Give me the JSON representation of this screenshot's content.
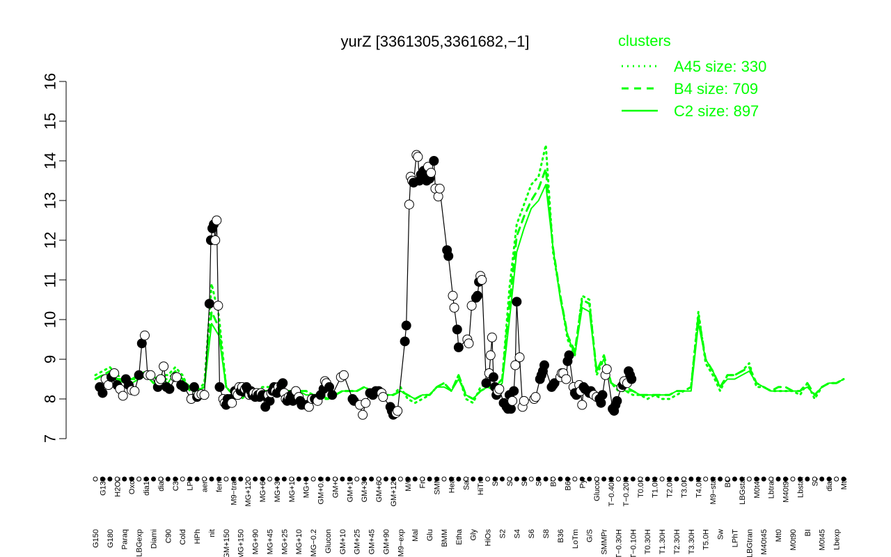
{
  "chart_data": {
    "type": "line",
    "title": "yurZ [3361305,3361682,−1]",
    "xlabel": "",
    "ylabel": "",
    "ylim": [
      7,
      16
    ],
    "yticks": [
      7,
      8,
      9,
      10,
      11,
      12,
      13,
      14,
      15,
      16
    ],
    "x": [
      "G150",
      "G135",
      "G180",
      "H2O2",
      "Paraq",
      "Oxctl",
      "LBGexp",
      "dia15",
      "Diami",
      "dia5",
      "C90",
      "C30",
      "Cold",
      "LPh",
      "HPh",
      "aero",
      "nit",
      "ferm",
      "GM+150",
      "M9−tran",
      "MG+150",
      "MG+120",
      "MG+90",
      "MG+60",
      "MG+45",
      "MG+30",
      "MG+25",
      "MG+15",
      "MG+10",
      "MG+5",
      "MG−0.2",
      "GM+0.2",
      "Glucon",
      "GM+5",
      "GM+10",
      "GM+15",
      "GM+25",
      "GM+30",
      "GM+45",
      "GM+60",
      "GM+90",
      "GM+120",
      "M9−exp",
      "M/G",
      "Mal",
      "Fru",
      "Glu",
      "SMM",
      "BMM",
      "Heat",
      "Etha",
      "Salt",
      "Gly",
      "HiTm",
      "HiOs",
      "S1",
      "S2",
      "S3",
      "S4",
      "S5",
      "S6",
      "S7",
      "S8",
      "BT",
      "B36",
      "B60",
      "LoTm",
      "Pyr",
      "G/S",
      "Glucon",
      "SMMPr",
      "T−0.40H",
      "T−0.30H",
      "T−0.20H",
      "T−0.10H",
      "T0.0H",
      "T0.30H",
      "T1.0H",
      "T1.30H",
      "T2.0H",
      "T2.30H",
      "T3.0H",
      "T3.30H",
      "T4.0H",
      "T5.0H",
      "M9−stat",
      "Sw",
      "BC",
      "LPhT",
      "LBGstat",
      "LBGtran",
      "M0t45",
      "M40t45",
      "Lbtran",
      "Mt0",
      "M40t90",
      "M0t90",
      "Lbstat",
      "BI",
      "S0",
      "M0t45",
      "dia0",
      "Lbexp",
      "Mt0"
    ],
    "series": [
      {
        "name": "A45 size: 330",
        "style": "dotted",
        "values": [
          8.6,
          8.7,
          8.8,
          8.6,
          8.5,
          8.5,
          8.6,
          8.7,
          8.5,
          8.6,
          8.6,
          8.8,
          8.6,
          8.2,
          8.2,
          8.4,
          10.9,
          10.1,
          8.3,
          8.1,
          8.0,
          8.1,
          8.2,
          8.3,
          8.3,
          8.2,
          8.2,
          8.2,
          8.2,
          8.2,
          8.1,
          8.0,
          8.0,
          8.1,
          8.2,
          8.2,
          8.2,
          8.3,
          8.2,
          8.1,
          8.1,
          8.1,
          8.3,
          8.0,
          7.9,
          8.0,
          8.1,
          8.3,
          8.4,
          8.2,
          8.6,
          8.0,
          7.9,
          8.3,
          8.4,
          8.3,
          8.5,
          10.8,
          12.4,
          12.9,
          13.4,
          13.6,
          14.4,
          11.7,
          10.6,
          9.5,
          9.1,
          10.6,
          10.5,
          8.6,
          9.0,
          8.4,
          8.2,
          8.2,
          8.1,
          8.1,
          8.0,
          8.1,
          8.0,
          8.0,
          8.1,
          8.2,
          8.3,
          10.2,
          8.9,
          8.6,
          8.2,
          8.6,
          8.6,
          8.7,
          8.9,
          8.3,
          8.3,
          8.2,
          8.2,
          8.2,
          8.2,
          8.1,
          8.4,
          8.0,
          8.3,
          8.4,
          8.4,
          8.5
        ]
      },
      {
        "name": "B4 size: 709",
        "style": "dashed",
        "values": [
          8.5,
          8.6,
          8.7,
          8.5,
          8.5,
          8.5,
          8.5,
          8.6,
          8.4,
          8.5,
          8.5,
          8.7,
          8.5,
          8.3,
          8.2,
          8.3,
          10.2,
          9.8,
          8.3,
          8.1,
          8.1,
          8.1,
          8.2,
          8.2,
          8.2,
          8.2,
          8.2,
          8.2,
          8.2,
          8.2,
          8.1,
          8.1,
          8.0,
          8.1,
          8.2,
          8.2,
          8.2,
          8.3,
          8.2,
          8.2,
          8.1,
          8.1,
          8.2,
          8.1,
          8.0,
          8.1,
          8.1,
          8.3,
          8.4,
          8.2,
          8.6,
          8.1,
          8.0,
          8.2,
          8.3,
          8.3,
          8.5,
          10.4,
          12.1,
          12.6,
          13.0,
          13.3,
          13.8,
          11.8,
          10.6,
          9.6,
          9.2,
          10.5,
          10.4,
          8.7,
          9.1,
          8.4,
          8.3,
          8.3,
          8.2,
          8.1,
          8.1,
          8.1,
          8.1,
          8.1,
          8.2,
          8.2,
          8.3,
          10.1,
          9.0,
          8.7,
          8.3,
          8.6,
          8.6,
          8.7,
          8.8,
          8.4,
          8.3,
          8.2,
          8.3,
          8.3,
          8.2,
          8.2,
          8.4,
          8.1,
          8.3,
          8.4,
          8.4,
          8.5
        ]
      },
      {
        "name": "C2 size: 897",
        "style": "solid",
        "values": [
          8.5,
          8.6,
          8.6,
          8.5,
          8.4,
          8.4,
          8.5,
          8.6,
          8.4,
          8.5,
          8.4,
          8.7,
          8.5,
          8.3,
          8.2,
          8.3,
          9.9,
          9.6,
          8.3,
          8.1,
          8.1,
          8.1,
          8.2,
          8.2,
          8.2,
          8.2,
          8.2,
          8.2,
          8.2,
          8.1,
          8.1,
          8.1,
          8.0,
          8.1,
          8.2,
          8.2,
          8.2,
          8.3,
          8.2,
          8.1,
          8.1,
          8.1,
          8.2,
          8.1,
          8.0,
          8.1,
          8.1,
          8.3,
          8.3,
          8.2,
          8.5,
          8.1,
          8.0,
          8.2,
          8.3,
          8.2,
          8.4,
          10.0,
          11.7,
          12.3,
          12.8,
          13.0,
          13.4,
          11.8,
          10.5,
          9.6,
          9.1,
          10.3,
          10.2,
          8.7,
          9.0,
          8.4,
          8.3,
          8.2,
          8.2,
          8.1,
          8.1,
          8.1,
          8.1,
          8.1,
          8.2,
          8.2,
          8.2,
          9.9,
          9.0,
          8.7,
          8.3,
          8.5,
          8.5,
          8.6,
          8.7,
          8.4,
          8.3,
          8.2,
          8.2,
          8.2,
          8.2,
          8.2,
          8.3,
          8.1,
          8.3,
          8.4,
          8.4,
          8.5
        ]
      }
    ],
    "points": [
      [
        0.6,
        8.3,
        1
      ],
      [
        1.0,
        8.15,
        1
      ],
      [
        1.4,
        8.5,
        0
      ],
      [
        1.8,
        8.35,
        0
      ],
      [
        2.2,
        8.55,
        1
      ],
      [
        2.6,
        8.65,
        0
      ],
      [
        3.0,
        8.35,
        1
      ],
      [
        3.4,
        8.25,
        0
      ],
      [
        3.8,
        8.08,
        0
      ],
      [
        4.2,
        8.5,
        1
      ],
      [
        4.6,
        8.35,
        1
      ],
      [
        5.0,
        8.22,
        0
      ],
      [
        5.4,
        8.2,
        0
      ],
      [
        6.0,
        8.6,
        1
      ],
      [
        6.4,
        9.4,
        1
      ],
      [
        6.8,
        9.6,
        0
      ],
      [
        7.2,
        8.6,
        0
      ],
      [
        7.6,
        8.6,
        0
      ],
      [
        8.6,
        8.3,
        1
      ],
      [
        8.8,
        8.45,
        0
      ],
      [
        9.0,
        8.5,
        0
      ],
      [
        9.4,
        8.82,
        0
      ],
      [
        9.8,
        8.3,
        1
      ],
      [
        10.2,
        8.25,
        1
      ],
      [
        11.0,
        8.55,
        0
      ],
      [
        11.2,
        8.55,
        0
      ],
      [
        11.8,
        8.35,
        1
      ],
      [
        12.2,
        8.3,
        1
      ],
      [
        13.2,
        8.0,
        0
      ],
      [
        13.6,
        8.3,
        1
      ],
      [
        14.0,
        8.05,
        1
      ],
      [
        14.2,
        8.1,
        0
      ],
      [
        14.6,
        8.12,
        0
      ],
      [
        15.0,
        8.1,
        0
      ],
      [
        15.7,
        10.4,
        1
      ],
      [
        15.9,
        12.0,
        1
      ],
      [
        16.1,
        12.3,
        1
      ],
      [
        16.3,
        12.4,
        1
      ],
      [
        16.5,
        12.0,
        0
      ],
      [
        16.7,
        12.5,
        0
      ],
      [
        16.9,
        10.35,
        0
      ],
      [
        17.1,
        8.3,
        1
      ],
      [
        17.6,
        8.0,
        0
      ],
      [
        17.8,
        7.9,
        0
      ],
      [
        18.0,
        7.85,
        1
      ],
      [
        18.2,
        8.0,
        1
      ],
      [
        18.6,
        8.0,
        1
      ],
      [
        18.8,
        7.9,
        0
      ],
      [
        19.2,
        8.2,
        1
      ],
      [
        19.4,
        8.15,
        0
      ],
      [
        19.6,
        8.1,
        0
      ],
      [
        19.8,
        8.3,
        0
      ],
      [
        20.0,
        8.2,
        1
      ],
      [
        20.2,
        8.3,
        0
      ],
      [
        20.4,
        8.18,
        1
      ],
      [
        20.6,
        8.25,
        0
      ],
      [
        20.8,
        8.3,
        1
      ],
      [
        21.0,
        8.2,
        1
      ],
      [
        21.2,
        8.1,
        0
      ],
      [
        21.4,
        8.2,
        1
      ],
      [
        21.6,
        8.1,
        1
      ],
      [
        21.8,
        8.15,
        0
      ],
      [
        22.0,
        8.05,
        1
      ],
      [
        22.2,
        8.15,
        0
      ],
      [
        22.4,
        8.1,
        1
      ],
      [
        22.6,
        8.05,
        1
      ],
      [
        22.8,
        8.15,
        0
      ],
      [
        23.0,
        8.1,
        1
      ],
      [
        23.4,
        7.8,
        1
      ],
      [
        23.6,
        8.05,
        1
      ],
      [
        23.8,
        8.1,
        0
      ],
      [
        24.0,
        7.95,
        1
      ],
      [
        24.2,
        8.15,
        0
      ],
      [
        24.4,
        8.2,
        1
      ],
      [
        24.6,
        8.3,
        1
      ],
      [
        24.8,
        8.2,
        0
      ],
      [
        25.0,
        8.15,
        1
      ],
      [
        25.2,
        8.3,
        0
      ],
      [
        25.4,
        8.2,
        1
      ],
      [
        25.6,
        8.35,
        1
      ],
      [
        25.8,
        8.4,
        1
      ],
      [
        26.0,
        8.15,
        0
      ],
      [
        26.2,
        8.0,
        0
      ],
      [
        26.4,
        7.95,
        1
      ],
      [
        26.6,
        8.05,
        0
      ],
      [
        26.8,
        8.0,
        1
      ],
      [
        27.0,
        8.1,
        1
      ],
      [
        27.2,
        7.95,
        1
      ],
      [
        27.4,
        8.0,
        1
      ],
      [
        27.6,
        8.2,
        0
      ],
      [
        28.0,
        8.05,
        0
      ],
      [
        28.2,
        7.95,
        1
      ],
      [
        28.4,
        7.85,
        1
      ],
      [
        29.0,
        7.85,
        1
      ],
      [
        29.4,
        7.8,
        0
      ],
      [
        29.8,
        8.0,
        0
      ],
      [
        30.2,
        8.0,
        1
      ],
      [
        30.6,
        7.95,
        0
      ],
      [
        31.0,
        8.1,
        1
      ],
      [
        31.4,
        8.25,
        1
      ],
      [
        31.6,
        8.45,
        0
      ],
      [
        31.8,
        8.4,
        0
      ],
      [
        32.2,
        8.3,
        1
      ],
      [
        32.6,
        8.1,
        1
      ],
      [
        33.8,
        8.55,
        0
      ],
      [
        34.2,
        8.6,
        0
      ],
      [
        35.4,
        8.0,
        1
      ],
      [
        35.6,
        7.95,
        1
      ],
      [
        36.4,
        7.85,
        0
      ],
      [
        36.8,
        7.6,
        0
      ],
      [
        37.2,
        7.9,
        0
      ],
      [
        37.8,
        8.15,
        1
      ],
      [
        38.2,
        8.1,
        1
      ],
      [
        38.6,
        8.2,
        1
      ],
      [
        39.0,
        8.2,
        1
      ],
      [
        39.4,
        8.15,
        0
      ],
      [
        39.6,
        8.05,
        0
      ],
      [
        40.6,
        7.8,
        1
      ],
      [
        40.8,
        7.7,
        1
      ],
      [
        41.0,
        7.6,
        1
      ],
      [
        41.4,
        7.65,
        0
      ],
      [
        41.6,
        7.7,
        0
      ],
      [
        42.6,
        9.45,
        1
      ],
      [
        42.8,
        9.85,
        1
      ],
      [
        43.2,
        12.9,
        0
      ],
      [
        43.4,
        13.6,
        0
      ],
      [
        43.6,
        13.5,
        0
      ],
      [
        43.8,
        13.45,
        1
      ],
      [
        44.2,
        14.15,
        0
      ],
      [
        44.4,
        14.1,
        0
      ],
      [
        44.6,
        13.5,
        1
      ],
      [
        44.8,
        13.65,
        1
      ],
      [
        45.0,
        13.55,
        1
      ],
      [
        45.2,
        13.75,
        1
      ],
      [
        45.4,
        13.7,
        1
      ],
      [
        45.6,
        13.5,
        1
      ],
      [
        45.8,
        13.85,
        0
      ],
      [
        46.0,
        13.55,
        1
      ],
      [
        46.2,
        13.7,
        0
      ],
      [
        46.6,
        14.0,
        1
      ],
      [
        46.8,
        13.3,
        0
      ],
      [
        47.2,
        13.1,
        0
      ],
      [
        47.4,
        13.3,
        0
      ],
      [
        48.4,
        11.75,
        1
      ],
      [
        48.6,
        11.6,
        1
      ],
      [
        49.2,
        10.6,
        0
      ],
      [
        49.4,
        10.3,
        0
      ],
      [
        49.8,
        9.75,
        1
      ],
      [
        50.0,
        9.3,
        1
      ],
      [
        51.2,
        9.5,
        0
      ],
      [
        51.4,
        9.4,
        0
      ],
      [
        51.8,
        10.35,
        0
      ],
      [
        52.4,
        10.55,
        1
      ],
      [
        52.6,
        10.6,
        1
      ],
      [
        52.8,
        10.95,
        1
      ],
      [
        53.0,
        11.1,
        0
      ],
      [
        53.2,
        11.0,
        0
      ],
      [
        53.8,
        8.4,
        1
      ],
      [
        54.2,
        8.65,
        0
      ],
      [
        54.4,
        9.1,
        0
      ],
      [
        54.6,
        9.55,
        0
      ],
      [
        54.8,
        8.55,
        1
      ],
      [
        55.0,
        8.3,
        1
      ],
      [
        55.2,
        8.1,
        1
      ],
      [
        55.4,
        8.2,
        0
      ],
      [
        55.6,
        8.25,
        0
      ],
      [
        56.2,
        7.9,
        1
      ],
      [
        56.6,
        7.8,
        1
      ],
      [
        56.8,
        7.75,
        1
      ],
      [
        57.0,
        8.1,
        1
      ],
      [
        57.2,
        7.75,
        1
      ],
      [
        57.4,
        7.95,
        0
      ],
      [
        57.6,
        8.2,
        1
      ],
      [
        57.8,
        8.85,
        0
      ],
      [
        58.0,
        10.45,
        1
      ],
      [
        58.4,
        9.05,
        0
      ],
      [
        58.8,
        7.8,
        0
      ],
      [
        59.0,
        7.95,
        0
      ],
      [
        60.4,
        8.0,
        0
      ],
      [
        60.6,
        8.05,
        0
      ],
      [
        61.2,
        8.5,
        1
      ],
      [
        61.4,
        8.6,
        1
      ],
      [
        61.6,
        8.7,
        1
      ],
      [
        61.8,
        8.85,
        1
      ],
      [
        62.8,
        8.3,
        1
      ],
      [
        63.0,
        8.35,
        1
      ],
      [
        63.2,
        8.4,
        1
      ],
      [
        64.0,
        8.55,
        0
      ],
      [
        64.2,
        8.65,
        0
      ],
      [
        64.4,
        8.65,
        0
      ],
      [
        64.8,
        8.5,
        0
      ],
      [
        65.0,
        8.95,
        1
      ],
      [
        65.2,
        9.1,
        1
      ],
      [
        65.8,
        8.3,
        0
      ],
      [
        66.0,
        8.15,
        1
      ],
      [
        66.2,
        8.1,
        1
      ],
      [
        66.6,
        8.35,
        0
      ],
      [
        66.8,
        8.2,
        0
      ],
      [
        67.0,
        7.85,
        0
      ],
      [
        67.2,
        8.3,
        1
      ],
      [
        67.4,
        8.25,
        1
      ],
      [
        68.0,
        8.15,
        1
      ],
      [
        68.2,
        8.2,
        1
      ],
      [
        68.6,
        8.1,
        0
      ],
      [
        69.0,
        8.05,
        0
      ],
      [
        69.4,
        8.0,
        1
      ],
      [
        69.6,
        7.9,
        1
      ],
      [
        69.8,
        8.1,
        1
      ],
      [
        70.2,
        8.6,
        0
      ],
      [
        70.4,
        8.75,
        0
      ],
      [
        71.2,
        7.75,
        1
      ],
      [
        71.4,
        7.7,
        1
      ],
      [
        71.6,
        7.85,
        1
      ],
      [
        71.8,
        7.95,
        1
      ],
      [
        72.4,
        8.3,
        0
      ],
      [
        72.6,
        8.35,
        1
      ],
      [
        72.8,
        8.45,
        0
      ],
      [
        73.2,
        8.4,
        0
      ],
      [
        73.4,
        8.7,
        1
      ],
      [
        73.6,
        8.6,
        1
      ],
      [
        73.8,
        8.5,
        1
      ]
    ],
    "legend": {
      "title": "clusters",
      "position": "top-right",
      "entries": [
        "A45 size: 330",
        "B4 size: 709",
        "C2 size: 897"
      ]
    },
    "colors": {
      "line": "#00ff00",
      "axis": "#000000",
      "point_filled": "#000000",
      "point_open": "#ffffff"
    }
  }
}
